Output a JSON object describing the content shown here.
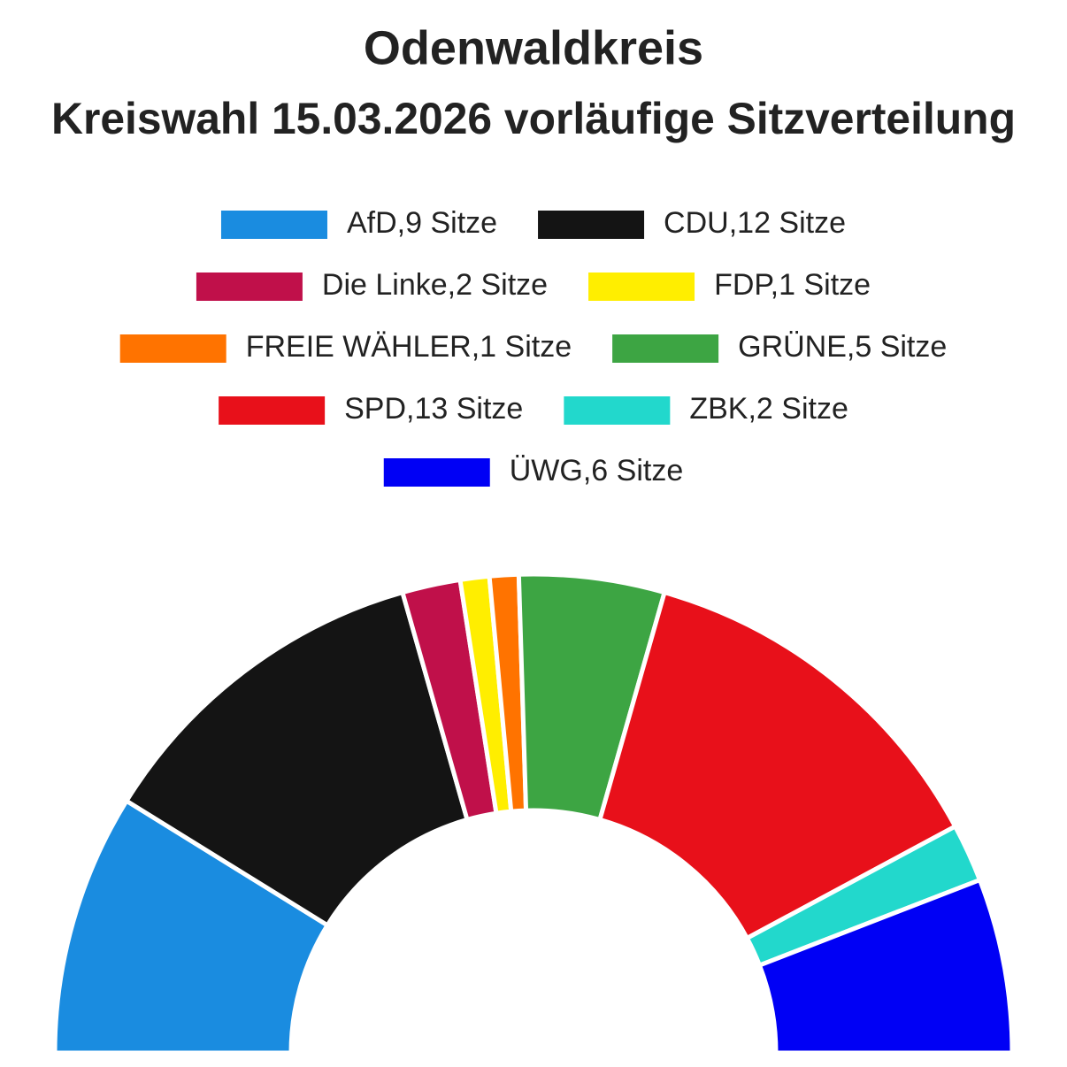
{
  "chart_data": {
    "type": "parliament",
    "title": "Odenwaldkreis",
    "subtitle": "Kreiswahl 15.03.2026 vorläufige Sitzverteilung",
    "categories": [
      "AfD,9 Sitze",
      "CDU,12 Sitze",
      "Die Linke,2 Sitze",
      "FDP,1 Sitze",
      "FREIE WÄHLER,1 Sitze",
      "GRÜNE,5 Sitze",
      "SPD,13 Sitze",
      "ZBK,2 Sitze",
      "ÜWG,6 Sitze"
    ],
    "values": [
      9,
      12,
      2,
      1,
      1,
      5,
      13,
      2,
      6
    ],
    "colors": [
      "#1a8ce0",
      "#141414",
      "#c0104a",
      "#ffee00",
      "#ff7300",
      "#3da543",
      "#e8101a",
      "#22d8cc",
      "#0000f5"
    ]
  }
}
